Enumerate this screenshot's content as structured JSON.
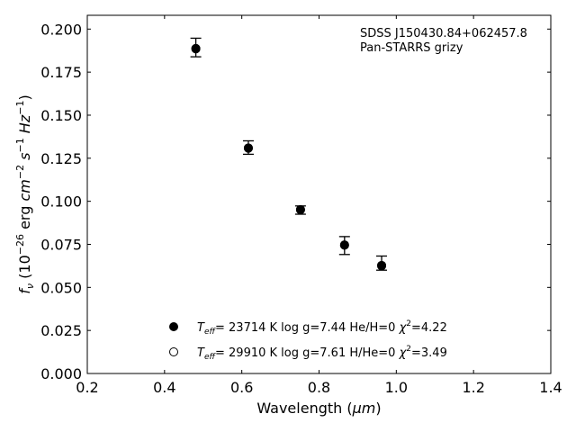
{
  "chart_data": {
    "type": "scatter",
    "title": "",
    "xlabel_main": "Wavelength (",
    "xlabel_unit": "μm",
    "xlabel_close": ")",
    "ylabel": {
      "symbol": "f",
      "subscript": "ν",
      "open": " (10",
      "exp_power": "−26",
      "erg": " erg ",
      "cm": "cm",
      "cm_power": "−2",
      "s": " s",
      "s_power": "−1",
      "hz": " Hz",
      "hz_power": "−1",
      "close": ")"
    },
    "xlim": [
      0.2,
      1.4
    ],
    "ylim": [
      0.0,
      0.208
    ],
    "x_ticks": [
      0.2,
      0.4,
      0.6,
      0.8,
      1.0,
      1.2,
      1.4
    ],
    "x_tick_labels": [
      "0.2",
      "0.4",
      "0.6",
      "0.8",
      "1.0",
      "1.2",
      "1.4"
    ],
    "y_ticks": [
      0.0,
      0.025,
      0.05,
      0.075,
      0.1,
      0.125,
      0.15,
      0.175,
      0.2
    ],
    "y_tick_labels": [
      "0.000",
      "0.025",
      "0.050",
      "0.075",
      "0.100",
      "0.125",
      "0.150",
      "0.175",
      "0.200"
    ],
    "grid": false,
    "annotation": {
      "line1": "SDSS J150430.84+062457.8",
      "line2": "Pan-STARRS grizy"
    },
    "observed": {
      "x": [
        0.481,
        0.617,
        0.752,
        0.866,
        0.962
      ],
      "y": [
        0.1893,
        0.1312,
        0.0949,
        0.0743,
        0.0641
      ],
      "yerr": [
        0.0054,
        0.0039,
        0.0024,
        0.0052,
        0.0041
      ]
    },
    "series": [
      {
        "marker": "filled-circle",
        "x": [
          0.481,
          0.617,
          0.752,
          0.866,
          0.962
        ],
        "y": [
          0.1885,
          0.1308,
          0.0952,
          0.0747,
          0.0628
        ],
        "legend": {
          "teff_symbol": "T",
          "teff_sub": "eff",
          "teff_value": "= 23714 K  log g=7.44  He/H=0  ",
          "chi_symbol": "χ",
          "chi_power": "2",
          "chi_value": "=4.22"
        }
      },
      {
        "marker": "open-circle",
        "x": [
          0.481,
          0.617,
          0.752,
          0.866,
          0.962
        ],
        "y": [
          0.1888,
          0.131,
          0.095,
          0.0745,
          0.0625
        ],
        "legend": {
          "teff_symbol": "T",
          "teff_sub": "eff",
          "teff_value": "= 29910 K  log g=7.61  H/He=0  ",
          "chi_symbol": "χ",
          "chi_power": "2",
          "chi_value": "=3.49"
        }
      }
    ],
    "legend_position": "bottom-center"
  }
}
